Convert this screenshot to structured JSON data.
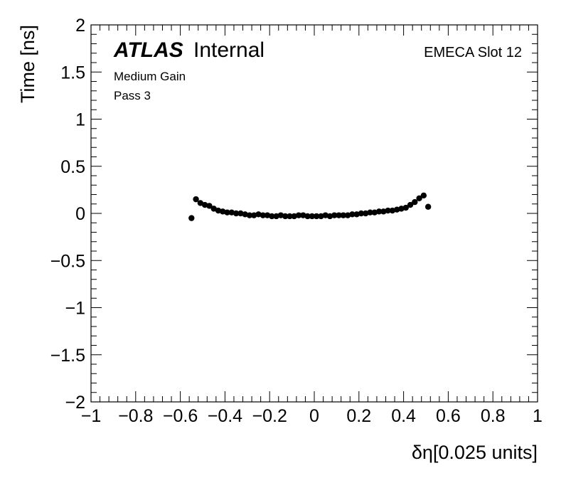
{
  "chart_data": {
    "type": "scatter",
    "title": "",
    "xlabel": "δη[0.025 units]",
    "ylabel": "Time [ns]",
    "xlim": [
      -1,
      1
    ],
    "ylim": [
      -2,
      2
    ],
    "x_ticks": [
      "−1",
      "−0.8",
      "−0.6",
      "−0.4",
      "−0.2",
      "0",
      "0.2",
      "0.4",
      "0.6",
      "0.8",
      "1"
    ],
    "x_tick_values": [
      -1,
      -0.8,
      -0.6,
      -0.4,
      -0.2,
      0,
      0.2,
      0.4,
      0.6,
      0.8,
      1
    ],
    "y_ticks": [
      "2",
      "1.5",
      "1",
      "0.5",
      "0",
      "−0.5",
      "−1",
      "−1.5",
      "−2"
    ],
    "y_tick_values": [
      2,
      1.5,
      1,
      0.5,
      0,
      -0.5,
      -1,
      -1.5,
      -2
    ],
    "marker_color": "#000000",
    "series": [
      {
        "x": [
          -0.55,
          -0.53,
          -0.51,
          -0.49,
          -0.47,
          -0.45,
          -0.43,
          -0.41,
          -0.39,
          -0.37,
          -0.35,
          -0.33,
          -0.31,
          -0.29,
          -0.27,
          -0.25,
          -0.23,
          -0.21,
          -0.19,
          -0.17,
          -0.15,
          -0.13,
          -0.11,
          -0.09,
          -0.07,
          -0.05,
          -0.03,
          -0.01,
          0.01,
          0.03,
          0.05,
          0.07,
          0.09,
          0.11,
          0.13,
          0.15,
          0.17,
          0.19,
          0.21,
          0.23,
          0.25,
          0.27,
          0.29,
          0.31,
          0.33,
          0.35,
          0.37,
          0.39,
          0.41,
          0.43,
          0.45,
          0.47,
          0.49,
          0.51
        ],
        "y": [
          -0.05,
          0.15,
          0.11,
          0.09,
          0.08,
          0.05,
          0.03,
          0.02,
          0.01,
          0.01,
          0.0,
          0.0,
          -0.01,
          -0.02,
          -0.02,
          -0.01,
          -0.02,
          -0.02,
          -0.03,
          -0.03,
          -0.02,
          -0.03,
          -0.03,
          -0.03,
          -0.02,
          -0.02,
          -0.03,
          -0.03,
          -0.03,
          -0.03,
          -0.02,
          -0.03,
          -0.02,
          -0.02,
          -0.02,
          -0.02,
          -0.01,
          -0.01,
          0.0,
          0.0,
          0.01,
          0.01,
          0.02,
          0.02,
          0.03,
          0.03,
          0.04,
          0.05,
          0.06,
          0.09,
          0.12,
          0.16,
          0.19,
          0.07
        ]
      }
    ]
  },
  "labels": {
    "atlas": "ATLAS",
    "internal": "Internal",
    "line1": "Medium Gain",
    "line2": "Pass 3",
    "slot": "EMECA Slot 12"
  }
}
